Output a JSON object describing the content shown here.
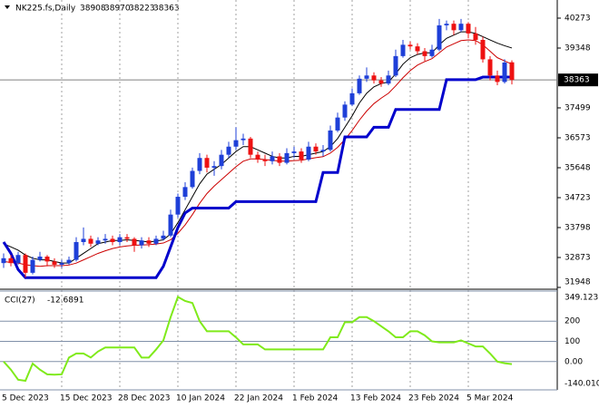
{
  "chart_data": [
    {
      "type": "candlestick",
      "title": "NK225.fs,Daily",
      "categories": [
        "5 Dec 2023",
        null,
        null,
        null,
        null,
        null,
        null,
        null,
        "15 Dec 2023",
        null,
        null,
        null,
        null,
        null,
        null,
        null,
        "28 Dec 2023",
        null,
        null,
        null,
        null,
        null,
        null,
        null,
        "10 Jan 2024",
        null,
        null,
        null,
        null,
        null,
        null,
        null,
        "22 Jan 2024",
        null,
        null,
        null,
        null,
        null,
        null,
        null,
        "1 Feb 2024",
        null,
        null,
        null,
        null,
        null,
        null,
        null,
        "13 Feb 2024",
        null,
        null,
        null,
        null,
        null,
        null,
        null,
        "23 Feb 2024",
        null,
        null,
        null,
        null,
        null,
        null,
        null,
        "5 Mar 2024",
        null,
        null,
        null,
        null,
        null,
        null
      ],
      "open": [
        32700,
        32850,
        32700,
        32950,
        32400,
        32800,
        32900,
        32750,
        32650,
        32700,
        32800,
        33350,
        33450,
        33300,
        33400,
        33450,
        33350,
        33500,
        33450,
        33250,
        33400,
        33300,
        33450,
        33550,
        34200,
        34750,
        35050,
        35550,
        35950,
        35650,
        35700,
        36050,
        36300,
        36500,
        36550,
        36050,
        35900,
        35850,
        36000,
        35800,
        36100,
        36150,
        35900,
        36300,
        36150,
        36200,
        36800,
        37200,
        37600,
        37950,
        38400,
        38500,
        38350,
        38250,
        38500,
        39100,
        39450,
        39400,
        39250,
        39100,
        39300,
        40050,
        40100,
        39900,
        40100,
        39800,
        39600,
        39000,
        38500,
        38300,
        38908
      ],
      "high": [
        33000,
        32950,
        33050,
        33000,
        32900,
        33050,
        32950,
        32850,
        32800,
        32900,
        33500,
        33800,
        33550,
        33500,
        33600,
        33550,
        33600,
        33600,
        33500,
        33500,
        33500,
        33550,
        33700,
        34350,
        34850,
        35200,
        35650,
        36100,
        36050,
        35850,
        36200,
        36450,
        36900,
        36700,
        36600,
        36150,
        36050,
        36150,
        36100,
        36250,
        36300,
        36250,
        36450,
        36400,
        36350,
        36950,
        37350,
        37700,
        38100,
        38500,
        38750,
        38600,
        38450,
        38650,
        39300,
        39600,
        39550,
        39500,
        39350,
        39450,
        40250,
        40200,
        40200,
        40250,
        40150,
        40000,
        39700,
        39100,
        38650,
        39000,
        38970
      ],
      "low": [
        32550,
        32600,
        32650,
        32250,
        32350,
        32750,
        32600,
        32550,
        32550,
        32650,
        32750,
        33250,
        33200,
        33250,
        33300,
        33250,
        33250,
        33350,
        33050,
        33150,
        33200,
        33250,
        33400,
        33500,
        34100,
        34650,
        35000,
        35450,
        35500,
        35400,
        35600,
        35950,
        36200,
        36350,
        35950,
        35800,
        35700,
        35750,
        35700,
        35750,
        35950,
        35800,
        35850,
        36050,
        36000,
        36150,
        36750,
        37100,
        37550,
        37900,
        38300,
        38250,
        38150,
        38200,
        38450,
        39050,
        39300,
        39150,
        38950,
        39050,
        39250,
        39900,
        39750,
        39850,
        39650,
        39450,
        38900,
        38350,
        38200,
        38250,
        38223
      ],
      "close": [
        32850,
        32700,
        32950,
        32400,
        32800,
        32900,
        32750,
        32650,
        32700,
        32800,
        33350,
        33450,
        33300,
        33400,
        33450,
        33350,
        33500,
        33450,
        33250,
        33400,
        33300,
        33450,
        33550,
        34200,
        34750,
        35050,
        35550,
        35950,
        35650,
        35700,
        36050,
        36300,
        36500,
        36550,
        36050,
        35900,
        35850,
        36000,
        35800,
        36100,
        36150,
        35900,
        36300,
        36150,
        36200,
        36800,
        37200,
        37600,
        37950,
        38400,
        38500,
        38350,
        38250,
        38500,
        39100,
        39450,
        39400,
        39250,
        39100,
        39300,
        40050,
        40100,
        39900,
        40100,
        39800,
        39600,
        39000,
        38500,
        38300,
        38900,
        38363
      ],
      "up_color": "#1e3fd8",
      "down_color": "#ee1111",
      "lines": [
        {
          "color": "#000000",
          "width": 1,
          "values": [
            33300,
            33200,
            33100,
            32950,
            32850,
            32800,
            32800,
            32750,
            32700,
            32700,
            32850,
            33000,
            33150,
            33300,
            33350,
            33400,
            33400,
            33420,
            33400,
            33380,
            33350,
            33380,
            33420,
            33600,
            33950,
            34350,
            34750,
            35150,
            35450,
            35600,
            35750,
            35950,
            36150,
            36300,
            36300,
            36200,
            36100,
            36000,
            35950,
            35950,
            36000,
            36000,
            36050,
            36100,
            36150,
            36300,
            36550,
            36900,
            37250,
            37650,
            37950,
            38150,
            38250,
            38300,
            38550,
            38850,
            39050,
            39150,
            39200,
            39200,
            39450,
            39650,
            39750,
            39850,
            39850,
            39800,
            39700,
            39600,
            39500,
            39420,
            39350
          ]
        },
        {
          "color": "#cc0000",
          "width": 1,
          "values": [
            32750,
            32720,
            32700,
            32650,
            32620,
            32600,
            32620,
            32620,
            32620,
            32640,
            32700,
            32800,
            32900,
            33000,
            33080,
            33150,
            33200,
            33230,
            33250,
            33260,
            33270,
            33290,
            33320,
            33420,
            33620,
            33880,
            34200,
            34550,
            34850,
            35080,
            35280,
            35480,
            35680,
            35850,
            35920,
            35920,
            35900,
            35880,
            35850,
            35850,
            35870,
            35880,
            35920,
            35960,
            35990,
            36100,
            36280,
            36520,
            36800,
            37120,
            37400,
            37630,
            37800,
            37950,
            38180,
            38430,
            38650,
            38820,
            38930,
            39020,
            39200,
            39380,
            39480,
            39580,
            39600,
            39580,
            39450,
            39250,
            39050,
            38950,
            38850
          ]
        },
        {
          "color": "#0000cc",
          "width": 3,
          "values": [
            33350,
            33000,
            32500,
            32250,
            32250,
            32250,
            32250,
            32250,
            32250,
            32250,
            32250,
            32250,
            32250,
            32250,
            32250,
            32250,
            32250,
            32250,
            32250,
            32250,
            32250,
            32250,
            32600,
            33200,
            33800,
            34250,
            34400,
            34400,
            34400,
            34400,
            34400,
            34400,
            34600,
            34600,
            34600,
            34600,
            34600,
            34600,
            34600,
            34600,
            34600,
            34600,
            34600,
            34600,
            35500,
            35500,
            35500,
            36600,
            36600,
            36600,
            36600,
            36900,
            36900,
            36900,
            37450,
            37450,
            37450,
            37450,
            37450,
            37450,
            37450,
            38370,
            38370,
            38370,
            38370,
            38370,
            38450,
            38450,
            38450,
            38450,
            38450
          ]
        }
      ],
      "ylim": [
        31920,
        40834
      ],
      "yticks": [
        31948,
        32873,
        33798,
        34723,
        35648,
        36573,
        37499,
        39348,
        40273
      ]
    },
    {
      "type": "line",
      "title": "CCI(27)",
      "color": "#7fea1a",
      "values": [
        0,
        -40,
        -90,
        -95,
        -10,
        -40,
        -63,
        -65,
        -63,
        20,
        40,
        40,
        20,
        50,
        70,
        70,
        70,
        70,
        70,
        20,
        20,
        60,
        105,
        220,
        320,
        300,
        290,
        200,
        150,
        150,
        150,
        150,
        120,
        85,
        85,
        85,
        60,
        60,
        60,
        60,
        60,
        60,
        60,
        60,
        60,
        120,
        120,
        195,
        195,
        220,
        220,
        200,
        175,
        150,
        120,
        120,
        150,
        150,
        130,
        100,
        95,
        95,
        95,
        105,
        90,
        75,
        75,
        40,
        0,
        -8,
        -12.6891
      ],
      "ylim": [
        -140.01,
        349.1237
      ],
      "yticks": [
        349.1237,
        200,
        100,
        {
          "value": 0,
          "label": "0.00"
        },
        {
          "value": -140.01,
          "label": "-140.010"
        }
      ]
    }
  ]
}
